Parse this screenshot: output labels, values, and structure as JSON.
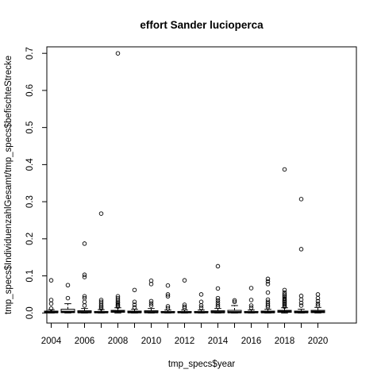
{
  "chart_data": {
    "type": "boxplot",
    "title": "effort Sander lucioperca",
    "xlabel": "tmp_specs$year",
    "ylabel": "tmp_specs$IndividuenzahlGesamt/tmp_specs$befischteStrecke",
    "x_tick_labels": [
      "2004",
      "2006",
      "2008",
      "2010",
      "2012",
      "2014",
      "2016",
      "2018",
      "2020"
    ],
    "y_ticks": [
      0.0,
      0.1,
      0.2,
      0.3,
      0.4,
      0.5,
      0.6,
      0.7
    ],
    "y_tick_labels": [
      "0.0",
      "0.1",
      "0.2",
      "0.3",
      "0.4",
      "0.5",
      "0.6",
      "0.7"
    ],
    "ylim": [
      -0.02,
      0.72
    ],
    "grid": false,
    "legend": "none",
    "series": [
      {
        "year": 2004,
        "min": 0.0,
        "q1": 0.001,
        "median": 0.002,
        "q3": 0.005,
        "max": 0.009,
        "outliers": [
          0.088,
          0.035,
          0.025,
          0.012
        ]
      },
      {
        "year": 2005,
        "min": 0.0,
        "q1": 0.001,
        "median": 0.003,
        "q3": 0.01,
        "max": 0.025,
        "outliers": [
          0.075,
          0.04
        ]
      },
      {
        "year": 2006,
        "min": 0.0,
        "q1": 0.001,
        "median": 0.002,
        "q3": 0.006,
        "max": 0.012,
        "outliers": [
          0.187,
          0.103,
          0.097,
          0.045,
          0.04,
          0.03,
          0.02
        ]
      },
      {
        "year": 2007,
        "min": 0.0,
        "q1": 0.001,
        "median": 0.002,
        "q3": 0.004,
        "max": 0.009,
        "outliers": [
          0.268,
          0.035,
          0.03,
          0.025,
          0.02,
          0.016,
          0.012
        ]
      },
      {
        "year": 2008,
        "min": 0.0,
        "q1": 0.002,
        "median": 0.004,
        "q3": 0.007,
        "max": 0.014,
        "outliers": [
          0.7,
          0.045,
          0.04,
          0.035,
          0.03,
          0.027,
          0.023,
          0.02,
          0.017
        ]
      },
      {
        "year": 2009,
        "min": 0.0,
        "q1": 0.001,
        "median": 0.002,
        "q3": 0.005,
        "max": 0.01,
        "outliers": [
          0.062,
          0.03,
          0.022,
          0.015
        ]
      },
      {
        "year": 2010,
        "min": 0.0,
        "q1": 0.001,
        "median": 0.002,
        "q3": 0.006,
        "max": 0.012,
        "outliers": [
          0.087,
          0.078,
          0.032,
          0.026,
          0.02
        ]
      },
      {
        "year": 2011,
        "min": 0.0,
        "q1": 0.001,
        "median": 0.002,
        "q3": 0.004,
        "max": 0.008,
        "outliers": [
          0.074,
          0.05,
          0.045,
          0.018,
          0.013
        ]
      },
      {
        "year": 2012,
        "min": 0.0,
        "q1": 0.001,
        "median": 0.002,
        "q3": 0.004,
        "max": 0.008,
        "outliers": [
          0.088,
          0.022,
          0.017,
          0.013
        ]
      },
      {
        "year": 2013,
        "min": 0.0,
        "q1": 0.001,
        "median": 0.002,
        "q3": 0.004,
        "max": 0.008,
        "outliers": [
          0.05,
          0.03,
          0.02,
          0.014
        ]
      },
      {
        "year": 2014,
        "min": 0.0,
        "q1": 0.001,
        "median": 0.002,
        "q3": 0.006,
        "max": 0.012,
        "outliers": [
          0.126,
          0.066,
          0.04,
          0.034,
          0.028,
          0.022,
          0.017
        ]
      },
      {
        "year": 2015,
        "min": 0.0,
        "q1": 0.001,
        "median": 0.002,
        "q3": 0.007,
        "max": 0.02,
        "outliers": [
          0.034,
          0.03
        ]
      },
      {
        "year": 2016,
        "min": 0.0,
        "q1": 0.001,
        "median": 0.002,
        "q3": 0.004,
        "max": 0.008,
        "outliers": [
          0.067,
          0.035,
          0.02,
          0.014
        ]
      },
      {
        "year": 2017,
        "min": 0.0,
        "q1": 0.001,
        "median": 0.002,
        "q3": 0.005,
        "max": 0.01,
        "outliers": [
          0.092,
          0.085,
          0.078,
          0.055,
          0.036,
          0.03,
          0.025,
          0.02,
          0.016
        ]
      },
      {
        "year": 2018,
        "min": 0.0,
        "q1": 0.002,
        "median": 0.004,
        "q3": 0.007,
        "max": 0.014,
        "outliers": [
          0.387,
          0.062,
          0.055,
          0.05,
          0.046,
          0.042,
          0.038,
          0.035,
          0.032,
          0.029,
          0.026,
          0.023,
          0.02,
          0.017
        ]
      },
      {
        "year": 2019,
        "min": 0.0,
        "q1": 0.001,
        "median": 0.002,
        "q3": 0.005,
        "max": 0.01,
        "outliers": [
          0.307,
          0.172,
          0.046,
          0.036,
          0.027,
          0.02
        ]
      },
      {
        "year": 2020,
        "min": 0.0,
        "q1": 0.001,
        "median": 0.003,
        "q3": 0.007,
        "max": 0.015,
        "outliers": [
          0.05,
          0.04,
          0.032,
          0.025,
          0.02
        ]
      }
    ]
  }
}
